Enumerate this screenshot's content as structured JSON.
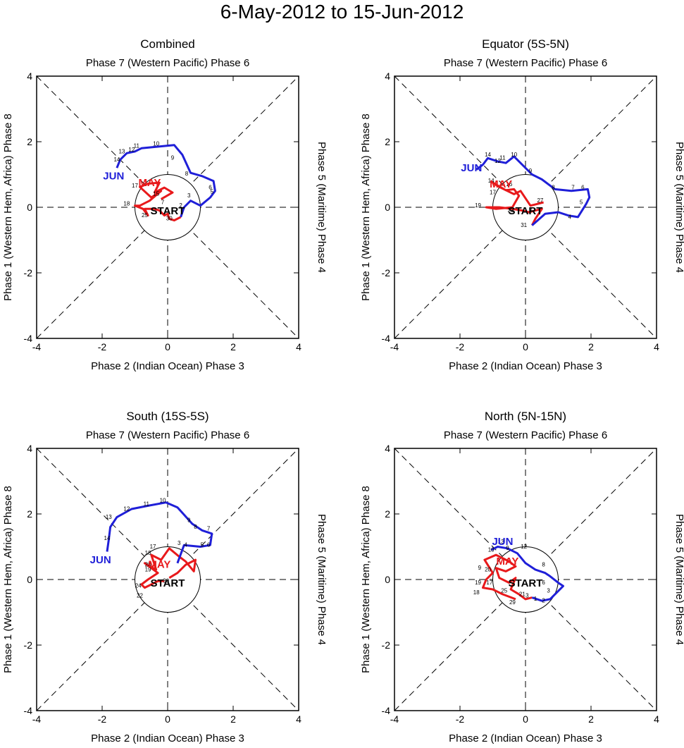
{
  "title": "6-May-2012 to 15-Jun-2012",
  "colors": {
    "may": "#e8191b",
    "jun": "#1f1fd8",
    "axis": "#000000"
  },
  "labels": {
    "top": "Phase 7 (Western Pacific) Phase 6",
    "bottom": "Phase 2 (Indian Ocean) Phase 3",
    "left": "Phase 1 (Western Hem, Africa) Phase 8",
    "right": "Phase 5 (Maritime) Phase 4",
    "start": "START",
    "may": "MAY",
    "jun": "JUN"
  },
  "chart_data": [
    {
      "type": "line",
      "title": "Combined",
      "xlim": [
        -4,
        4
      ],
      "ylim": [
        -4,
        4
      ],
      "ticks": [
        -4,
        -2,
        0,
        2,
        4
      ],
      "series": [
        {
          "name": "MAY",
          "color": "#e8191b",
          "points": [
            [
              -0.2,
              0.25
            ],
            [
              0.15,
              0.45
            ],
            [
              -0.1,
              0.6
            ],
            [
              -0.4,
              0.45
            ],
            [
              -0.25,
              0.75
            ],
            [
              -0.6,
              0.72
            ],
            [
              -0.85,
              0.62
            ],
            [
              -0.5,
              0.3
            ],
            [
              -0.2,
              0.5
            ],
            [
              -0.55,
              0.2
            ],
            [
              -0.85,
              0.05
            ],
            [
              -1.0,
              0.05
            ],
            [
              -0.75,
              -0.05
            ],
            [
              -0.6,
              -0.25
            ],
            [
              -0.7,
              -0.05
            ],
            [
              -0.4,
              -0.05
            ],
            [
              -0.25,
              -0.1
            ],
            [
              -0.1,
              -0.25
            ],
            [
              0.0,
              -0.2
            ],
            [
              0.05,
              -0.35
            ],
            [
              0.2,
              -0.4
            ],
            [
              0.4,
              -0.3
            ]
          ]
        },
        {
          "name": "JUN",
          "color": "#1f1fd8",
          "points": [
            [
              0.4,
              -0.3
            ],
            [
              0.5,
              0.0
            ],
            [
              0.7,
              0.2
            ],
            [
              1.0,
              0.05
            ],
            [
              1.3,
              0.3
            ],
            [
              1.45,
              0.5
            ],
            [
              1.4,
              0.8
            ],
            [
              1.05,
              0.95
            ],
            [
              0.7,
              1.05
            ],
            [
              0.45,
              1.6
            ],
            [
              0.2,
              1.9
            ],
            [
              -0.3,
              1.85
            ],
            [
              -0.8,
              1.8
            ],
            [
              -1.0,
              1.7
            ],
            [
              -1.25,
              1.65
            ],
            [
              -1.45,
              1.45
            ],
            [
              -1.55,
              1.2
            ]
          ]
        }
      ],
      "day_labels": [
        {
          "t": "3",
          "x": 0.65,
          "y": 0.3
        },
        {
          "t": "2",
          "x": 0.4,
          "y": 0.0
        },
        {
          "t": "6",
          "x": 1.3,
          "y": 0.55
        },
        {
          "t": "5",
          "x": 1.35,
          "y": 0.42
        },
        {
          "t": "8",
          "x": 0.58,
          "y": 0.97
        },
        {
          "t": "9",
          "x": 0.15,
          "y": 1.45
        },
        {
          "t": "10",
          "x": -0.35,
          "y": 1.88
        },
        {
          "t": "11",
          "x": -0.95,
          "y": 1.82
        },
        {
          "t": "12",
          "x": -1.1,
          "y": 1.7
        },
        {
          "t": "13",
          "x": -1.4,
          "y": 1.65
        },
        {
          "t": "14",
          "x": -1.55,
          "y": 1.4
        },
        {
          "t": "15",
          "x": -0.35,
          "y": 0.35
        },
        {
          "t": "7",
          "x": -0.15,
          "y": 0.1
        },
        {
          "t": "17",
          "x": -1.0,
          "y": 0.6
        },
        {
          "t": "18",
          "x": -1.25,
          "y": 0.05
        },
        {
          "t": "25",
          "x": -0.7,
          "y": -0.3
        },
        {
          "t": "30",
          "x": 0.05,
          "y": -0.4
        }
      ],
      "month_labels": [
        {
          "t": "MAY",
          "x": -0.55,
          "y": 0.65
        },
        {
          "t": "JUN",
          "x": -1.65,
          "y": 0.85
        }
      ]
    },
    {
      "type": "line",
      "title": "Equator (5S-5N)",
      "xlim": [
        -4,
        4
      ],
      "ylim": [
        -4,
        4
      ],
      "ticks": [
        -4,
        -2,
        0,
        2,
        4
      ],
      "series": [
        {
          "name": "MAY",
          "color": "#e8191b",
          "points": [
            [
              0.55,
              0.15
            ],
            [
              0.35,
              0.1
            ],
            [
              0.15,
              0.05
            ],
            [
              -0.15,
              0.5
            ],
            [
              -0.35,
              0.4
            ],
            [
              -0.8,
              0.62
            ],
            [
              -1.0,
              0.75
            ],
            [
              -0.6,
              0.52
            ],
            [
              -0.35,
              0.55
            ],
            [
              -0.2,
              0.35
            ],
            [
              -0.4,
              0.0
            ],
            [
              -0.9,
              -0.05
            ],
            [
              -1.2,
              0.0
            ],
            [
              -0.8,
              0.0
            ],
            [
              -0.4,
              -0.05
            ],
            [
              -0.1,
              -0.1
            ],
            [
              0.1,
              -0.15
            ],
            [
              0.3,
              -0.1
            ],
            [
              0.5,
              -0.05
            ],
            [
              0.3,
              -0.35
            ],
            [
              0.2,
              -0.55
            ]
          ]
        },
        {
          "name": "JUN",
          "color": "#1f1fd8",
          "points": [
            [
              0.2,
              -0.55
            ],
            [
              0.6,
              -0.2
            ],
            [
              1.0,
              -0.15
            ],
            [
              1.3,
              -0.25
            ],
            [
              1.6,
              -0.3
            ],
            [
              1.85,
              0.1
            ],
            [
              1.95,
              0.3
            ],
            [
              1.9,
              0.55
            ],
            [
              1.4,
              0.5
            ],
            [
              0.9,
              0.55
            ],
            [
              0.5,
              0.85
            ],
            [
              0.2,
              1.0
            ],
            [
              -0.35,
              1.55
            ],
            [
              -0.6,
              1.35
            ],
            [
              -0.85,
              1.4
            ],
            [
              -1.15,
              1.5
            ],
            [
              -1.3,
              1.3
            ],
            [
              -1.5,
              1.15
            ]
          ]
        }
      ],
      "day_labels": [
        {
          "t": "27",
          "x": 0.45,
          "y": 0.15
        },
        {
          "t": "3",
          "x": 0.15,
          "y": -0.15
        },
        {
          "t": "8",
          "x": 0.85,
          "y": 0.55
        },
        {
          "t": "7",
          "x": 1.45,
          "y": 0.55
        },
        {
          "t": "6",
          "x": 1.75,
          "y": 0.55
        },
        {
          "t": "5",
          "x": 1.7,
          "y": 0.1
        },
        {
          "t": "4",
          "x": 1.35,
          "y": -0.35
        },
        {
          "t": "9",
          "x": 0.15,
          "y": 1.05
        },
        {
          "t": "10",
          "x": -0.35,
          "y": 1.55
        },
        {
          "t": "11",
          "x": -0.7,
          "y": 1.45
        },
        {
          "t": "12",
          "x": -0.85,
          "y": 1.35
        },
        {
          "t": "14",
          "x": -1.15,
          "y": 1.55
        },
        {
          "t": "16",
          "x": -0.5,
          "y": 0.65
        },
        {
          "t": "17",
          "x": -1.0,
          "y": 0.4
        },
        {
          "t": "14",
          "x": -1.05,
          "y": 0.75
        },
        {
          "t": "19",
          "x": -1.45,
          "y": 0.0
        },
        {
          "t": "23",
          "x": -0.45,
          "y": -0.15
        },
        {
          "t": "31",
          "x": -0.05,
          "y": -0.6
        }
      ],
      "month_labels": [
        {
          "t": "MAY",
          "x": -0.75,
          "y": 0.6
        },
        {
          "t": "JUN",
          "x": -1.65,
          "y": 1.1
        }
      ]
    },
    {
      "type": "line",
      "title": "South (15S-5S)",
      "xlim": [
        -4,
        4
      ],
      "ylim": [
        -4,
        4
      ],
      "ticks": [
        -4,
        -2,
        0,
        2,
        4
      ],
      "series": [
        {
          "name": "MAY",
          "color": "#e8191b",
          "points": [
            [
              0.05,
              0.05
            ],
            [
              0.3,
              0.2
            ],
            [
              0.55,
              0.45
            ],
            [
              0.85,
              0.6
            ],
            [
              0.8,
              0.25
            ],
            [
              0.55,
              0.55
            ],
            [
              0.35,
              0.7
            ],
            [
              0.05,
              0.95
            ],
            [
              -0.2,
              0.6
            ],
            [
              -0.5,
              0.75
            ],
            [
              -0.35,
              0.3
            ],
            [
              -0.55,
              0.4
            ],
            [
              -0.7,
              0.5
            ],
            [
              -0.3,
              0.2
            ],
            [
              -0.6,
              0.0
            ],
            [
              -0.8,
              -0.15
            ],
            [
              -0.7,
              -0.25
            ],
            [
              -0.5,
              -0.15
            ],
            [
              -0.3,
              -0.05
            ],
            [
              -0.1,
              -0.05
            ]
          ]
        },
        {
          "name": "JUN",
          "color": "#1f1fd8",
          "points": [
            [
              0.3,
              0.5
            ],
            [
              0.5,
              1.05
            ],
            [
              1.0,
              1.0
            ],
            [
              1.3,
              1.05
            ],
            [
              1.35,
              1.4
            ],
            [
              1.05,
              1.5
            ],
            [
              0.75,
              1.7
            ],
            [
              0.3,
              2.2
            ],
            [
              -0.05,
              2.35
            ],
            [
              -0.6,
              2.25
            ],
            [
              -1.1,
              2.15
            ],
            [
              -1.55,
              1.9
            ],
            [
              -1.75,
              1.6
            ],
            [
              -1.8,
              1.2
            ],
            [
              -1.85,
              0.85
            ]
          ]
        }
      ],
      "day_labels": [
        {
          "t": "3",
          "x": 0.35,
          "y": 1.05
        },
        {
          "t": "4",
          "x": 0.55,
          "y": 1.0
        },
        {
          "t": "5",
          "x": 1.05,
          "y": 1.0
        },
        {
          "t": "6",
          "x": 1.25,
          "y": 1.0
        },
        {
          "t": "7",
          "x": 1.25,
          "y": 1.5
        },
        {
          "t": "8",
          "x": 0.85,
          "y": 1.55
        },
        {
          "t": "9",
          "x": 0.65,
          "y": 1.75
        },
        {
          "t": "10",
          "x": -0.15,
          "y": 2.35
        },
        {
          "t": "11",
          "x": -0.65,
          "y": 2.25
        },
        {
          "t": "12",
          "x": -1.25,
          "y": 2.1
        },
        {
          "t": "13",
          "x": -1.8,
          "y": 1.85
        },
        {
          "t": "14",
          "x": -1.85,
          "y": 1.2
        },
        {
          "t": "17",
          "x": -0.45,
          "y": 0.95
        },
        {
          "t": "18",
          "x": -0.6,
          "y": 0.75
        },
        {
          "t": "28",
          "x": -0.6,
          "y": 0.4
        },
        {
          "t": "19",
          "x": -0.6,
          "y": 0.25
        },
        {
          "t": "24",
          "x": -0.9,
          "y": -0.25
        },
        {
          "t": "22",
          "x": -0.85,
          "y": -0.55
        },
        {
          "t": "30",
          "x": -0.05,
          "y": -0.1
        }
      ],
      "month_labels": [
        {
          "t": "MAY",
          "x": -0.25,
          "y": 0.35
        },
        {
          "t": "JUN",
          "x": -2.05,
          "y": 0.5
        }
      ]
    },
    {
      "type": "line",
      "title": "North (5N-15N)",
      "xlim": [
        -4,
        4
      ],
      "ylim": [
        -4,
        4
      ],
      "ticks": [
        -4,
        -2,
        0,
        2,
        4
      ],
      "series": [
        {
          "name": "MAY",
          "color": "#e8191b",
          "points": [
            [
              -0.3,
              -0.6
            ],
            [
              -0.7,
              -0.45
            ],
            [
              -1.0,
              -0.3
            ],
            [
              -1.3,
              -0.25
            ],
            [
              -1.2,
              0.0
            ],
            [
              -1.0,
              0.2
            ],
            [
              -1.25,
              0.6
            ],
            [
              -0.9,
              0.75
            ],
            [
              -0.5,
              0.55
            ],
            [
              -0.3,
              0.4
            ],
            [
              -0.6,
              0.25
            ],
            [
              -0.9,
              0.35
            ],
            [
              -0.8,
              0.05
            ],
            [
              -0.5,
              -0.1
            ],
            [
              -0.3,
              0.05
            ],
            [
              -0.45,
              -0.3
            ],
            [
              -0.2,
              -0.45
            ],
            [
              0.0,
              -0.6
            ],
            [
              0.2,
              -0.55
            ]
          ]
        },
        {
          "name": "JUN",
          "color": "#1f1fd8",
          "points": [
            [
              0.2,
              -0.55
            ],
            [
              0.5,
              -0.65
            ],
            [
              0.75,
              -0.6
            ],
            [
              1.0,
              -0.35
            ],
            [
              1.15,
              -0.2
            ],
            [
              1.0,
              -0.1
            ],
            [
              0.75,
              0.1
            ],
            [
              0.6,
              0.2
            ],
            [
              0.3,
              0.3
            ],
            [
              0.0,
              0.5
            ],
            [
              -0.25,
              0.8
            ],
            [
              -0.55,
              0.95
            ],
            [
              -0.85,
              1.0
            ],
            [
              -1.05,
              0.9
            ]
          ]
        }
      ],
      "day_labels": [
        {
          "t": "1",
          "x": 0.3,
          "y": -0.65
        },
        {
          "t": "2",
          "x": 0.55,
          "y": -0.7
        },
        {
          "t": "3",
          "x": 0.7,
          "y": -0.4
        },
        {
          "t": "6",
          "x": 0.55,
          "y": -0.15
        },
        {
          "t": "8",
          "x": 0.55,
          "y": 0.4
        },
        {
          "t": "9",
          "x": -0.55,
          "y": 0.9
        },
        {
          "t": "10",
          "x": -1.05,
          "y": 0.85
        },
        {
          "t": "12",
          "x": -0.05,
          "y": 0.95
        },
        {
          "t": "13",
          "x": -0.75,
          "y": 1.1
        },
        {
          "t": "9",
          "x": -1.4,
          "y": 0.3
        },
        {
          "t": "20",
          "x": -1.15,
          "y": 0.25
        },
        {
          "t": "19",
          "x": -1.45,
          "y": -0.15
        },
        {
          "t": "17",
          "x": -1.1,
          "y": -0.15
        },
        {
          "t": "18",
          "x": -1.5,
          "y": -0.45
        },
        {
          "t": "25",
          "x": -0.65,
          "y": -0.4
        },
        {
          "t": "29",
          "x": -0.4,
          "y": -0.75
        },
        {
          "t": "3",
          "x": 0.05,
          "y": -0.55
        },
        {
          "t": "21",
          "x": -0.1,
          "y": -0.5
        }
      ],
      "month_labels": [
        {
          "t": "MAY",
          "x": -0.55,
          "y": 0.45
        },
        {
          "t": "JUN",
          "x": -0.7,
          "y": 1.05
        }
      ]
    }
  ]
}
